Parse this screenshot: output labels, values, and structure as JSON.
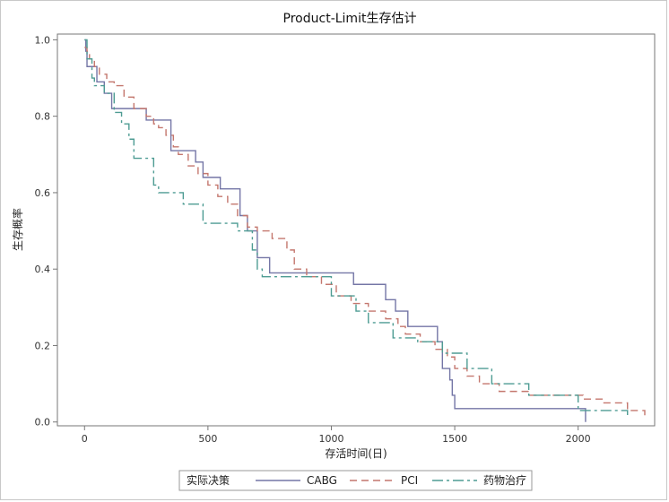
{
  "chart_data": {
    "type": "line",
    "step": true,
    "title": "Product-Limit生存估计",
    "xlabel": "存活时间(日)",
    "ylabel": "生存概率",
    "xlim": [
      -110,
      2310
    ],
    "ylim": [
      -0.01,
      1.015
    ],
    "xticks": [
      0,
      500,
      1000,
      1500,
      2000
    ],
    "yticks": [
      0.0,
      0.2,
      0.4,
      0.6,
      0.8,
      1.0
    ],
    "xtick_labels": [
      "0",
      "500",
      "1000",
      "1500",
      "2000"
    ],
    "ytick_labels": [
      "0.0",
      "0.2",
      "0.4",
      "0.6",
      "0.8",
      "1.0"
    ],
    "grid": false,
    "legend_title": "实际决策",
    "legend_position": "bottom",
    "series": [
      {
        "name": "CABG",
        "color": "#7476a6",
        "dash": "solid",
        "x": [
          0,
          5,
          10,
          20,
          50,
          80,
          110,
          160,
          250,
          350,
          450,
          480,
          550,
          630,
          660,
          700,
          750,
          870,
          1090,
          1190,
          1220,
          1260,
          1310,
          1350,
          1400,
          1430,
          1450,
          1480,
          1490,
          1500,
          2030
        ],
        "y": [
          1.0,
          0.97,
          0.93,
          0.93,
          0.89,
          0.86,
          0.82,
          0.82,
          0.79,
          0.71,
          0.68,
          0.64,
          0.61,
          0.54,
          0.5,
          0.43,
          0.39,
          0.39,
          0.36,
          0.36,
          0.32,
          0.29,
          0.25,
          0.25,
          0.25,
          0.21,
          0.14,
          0.11,
          0.07,
          0.035,
          0.0
        ]
      },
      {
        "name": "PCI",
        "color": "#c4776e",
        "dash": "8,5",
        "x": [
          0,
          10,
          20,
          40,
          60,
          90,
          120,
          160,
          200,
          250,
          280,
          300,
          330,
          360,
          380,
          420,
          460,
          500,
          540,
          580,
          620,
          660,
          700,
          760,
          820,
          850,
          900,
          960,
          1020,
          1080,
          1150,
          1220,
          1270,
          1300,
          1360,
          1420,
          1470,
          1500,
          1550,
          1600,
          1680,
          1800,
          2020,
          2100,
          2200,
          2270
        ],
        "y": [
          0.98,
          0.97,
          0.95,
          0.93,
          0.91,
          0.89,
          0.88,
          0.85,
          0.82,
          0.8,
          0.78,
          0.77,
          0.75,
          0.72,
          0.7,
          0.67,
          0.65,
          0.62,
          0.59,
          0.57,
          0.54,
          0.51,
          0.5,
          0.48,
          0.45,
          0.4,
          0.38,
          0.36,
          0.33,
          0.31,
          0.29,
          0.27,
          0.25,
          0.23,
          0.21,
          0.19,
          0.17,
          0.14,
          0.12,
          0.1,
          0.08,
          0.07,
          0.06,
          0.05,
          0.03,
          0.01
        ]
      },
      {
        "name": "药物治疗",
        "color": "#4e9c93",
        "dash": "12,4,3,4",
        "x": [
          0,
          10,
          30,
          40,
          80,
          120,
          150,
          180,
          200,
          280,
          300,
          400,
          480,
          620,
          680,
          700,
          720,
          800,
          1000,
          1100,
          1150,
          1250,
          1350,
          1450,
          1550,
          1650,
          1800,
          2000,
          2200
        ],
        "y": [
          1.0,
          0.95,
          0.9,
          0.88,
          0.86,
          0.81,
          0.78,
          0.74,
          0.69,
          0.62,
          0.6,
          0.57,
          0.52,
          0.5,
          0.45,
          0.4,
          0.38,
          0.38,
          0.33,
          0.29,
          0.26,
          0.22,
          0.21,
          0.18,
          0.14,
          0.1,
          0.07,
          0.03,
          0.01
        ]
      }
    ]
  }
}
